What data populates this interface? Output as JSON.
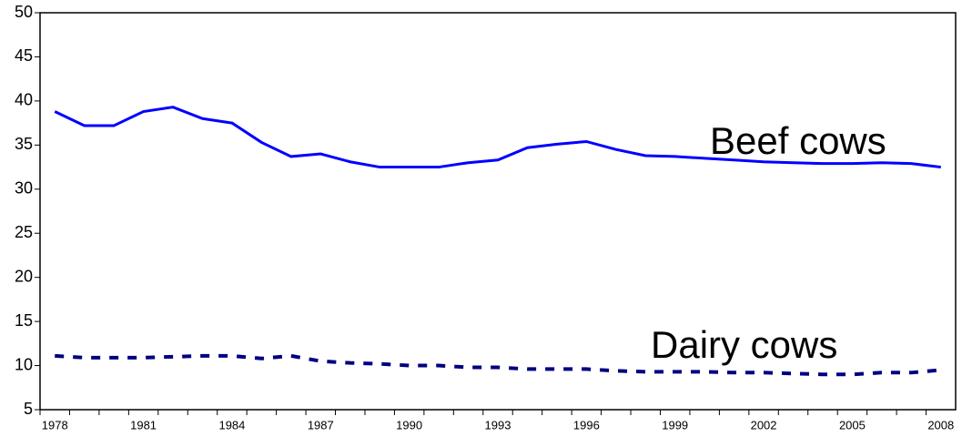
{
  "chart_data": {
    "type": "line",
    "categories": [
      "1978",
      null,
      null,
      "1981",
      null,
      null,
      "1984",
      null,
      null,
      "1987",
      null,
      null,
      "1990",
      null,
      null,
      "1993",
      null,
      null,
      "1996",
      null,
      null,
      "1999",
      null,
      null,
      "2002",
      null,
      null,
      "2005",
      null,
      null,
      "2008"
    ],
    "series": [
      {
        "name": "Beef cows",
        "color": "#0000ff",
        "dash": "solid",
        "values": [
          38.8,
          37.2,
          37.2,
          38.8,
          39.3,
          38.0,
          37.5,
          35.3,
          33.7,
          34.0,
          33.1,
          32.5,
          32.5,
          32.5,
          33.0,
          33.3,
          34.7,
          35.1,
          35.4,
          34.5,
          33.8,
          33.7,
          33.5,
          33.3,
          33.1,
          33.0,
          32.9,
          32.9,
          33.0,
          32.9,
          32.5
        ]
      },
      {
        "name": "Dairy cows",
        "color": "#000080",
        "dash": "dotted",
        "values": [
          11.1,
          10.9,
          10.9,
          10.9,
          11.0,
          11.1,
          11.1,
          10.8,
          11.1,
          10.5,
          10.3,
          10.2,
          10.0,
          10.0,
          9.8,
          9.8,
          9.6,
          9.6,
          9.6,
          9.4,
          9.3,
          9.3,
          9.3,
          9.2,
          9.2,
          9.1,
          9.0,
          9.0,
          9.2,
          9.2,
          9.5
        ]
      }
    ],
    "ylim": [
      5,
      50
    ],
    "yticks": [
      5,
      10,
      15,
      20,
      25,
      30,
      35,
      40,
      45,
      50
    ],
    "grid": false
  }
}
